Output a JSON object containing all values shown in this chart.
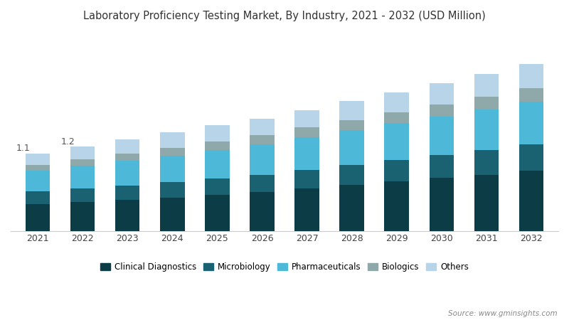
{
  "title": "Laboratory Proficiency Testing Market, By Industry, 2021 - 2032 (USD Million)",
  "years": [
    2021,
    2022,
    2023,
    2024,
    2025,
    2026,
    2027,
    2028,
    2029,
    2030,
    2031,
    2032
  ],
  "segments": {
    "Clinical Diagnostics": [
      0.38,
      0.41,
      0.44,
      0.47,
      0.51,
      0.55,
      0.6,
      0.65,
      0.7,
      0.75,
      0.8,
      0.86
    ],
    "Microbiology": [
      0.18,
      0.19,
      0.2,
      0.22,
      0.23,
      0.25,
      0.27,
      0.29,
      0.31,
      0.33,
      0.35,
      0.37
    ],
    "Pharmaceuticals": [
      0.3,
      0.33,
      0.36,
      0.38,
      0.41,
      0.43,
      0.46,
      0.49,
      0.52,
      0.55,
      0.58,
      0.61
    ],
    "Biologics": [
      0.08,
      0.09,
      0.1,
      0.11,
      0.12,
      0.13,
      0.14,
      0.15,
      0.16,
      0.17,
      0.18,
      0.19
    ],
    "Others": [
      0.16,
      0.18,
      0.2,
      0.22,
      0.23,
      0.24,
      0.25,
      0.27,
      0.28,
      0.3,
      0.32,
      0.34
    ]
  },
  "colors": {
    "Clinical Diagnostics": "#0c3c45",
    "Microbiology": "#1a6272",
    "Pharmaceuticals": "#4eb8d8",
    "Biologics": "#8fa8aa",
    "Others": "#b8d4e8"
  },
  "annotations": {
    "2021": "1.1",
    "2022": "1.2"
  },
  "source": "Source: www.gminsights.com",
  "background_color": "#ffffff",
  "bar_width": 0.55
}
